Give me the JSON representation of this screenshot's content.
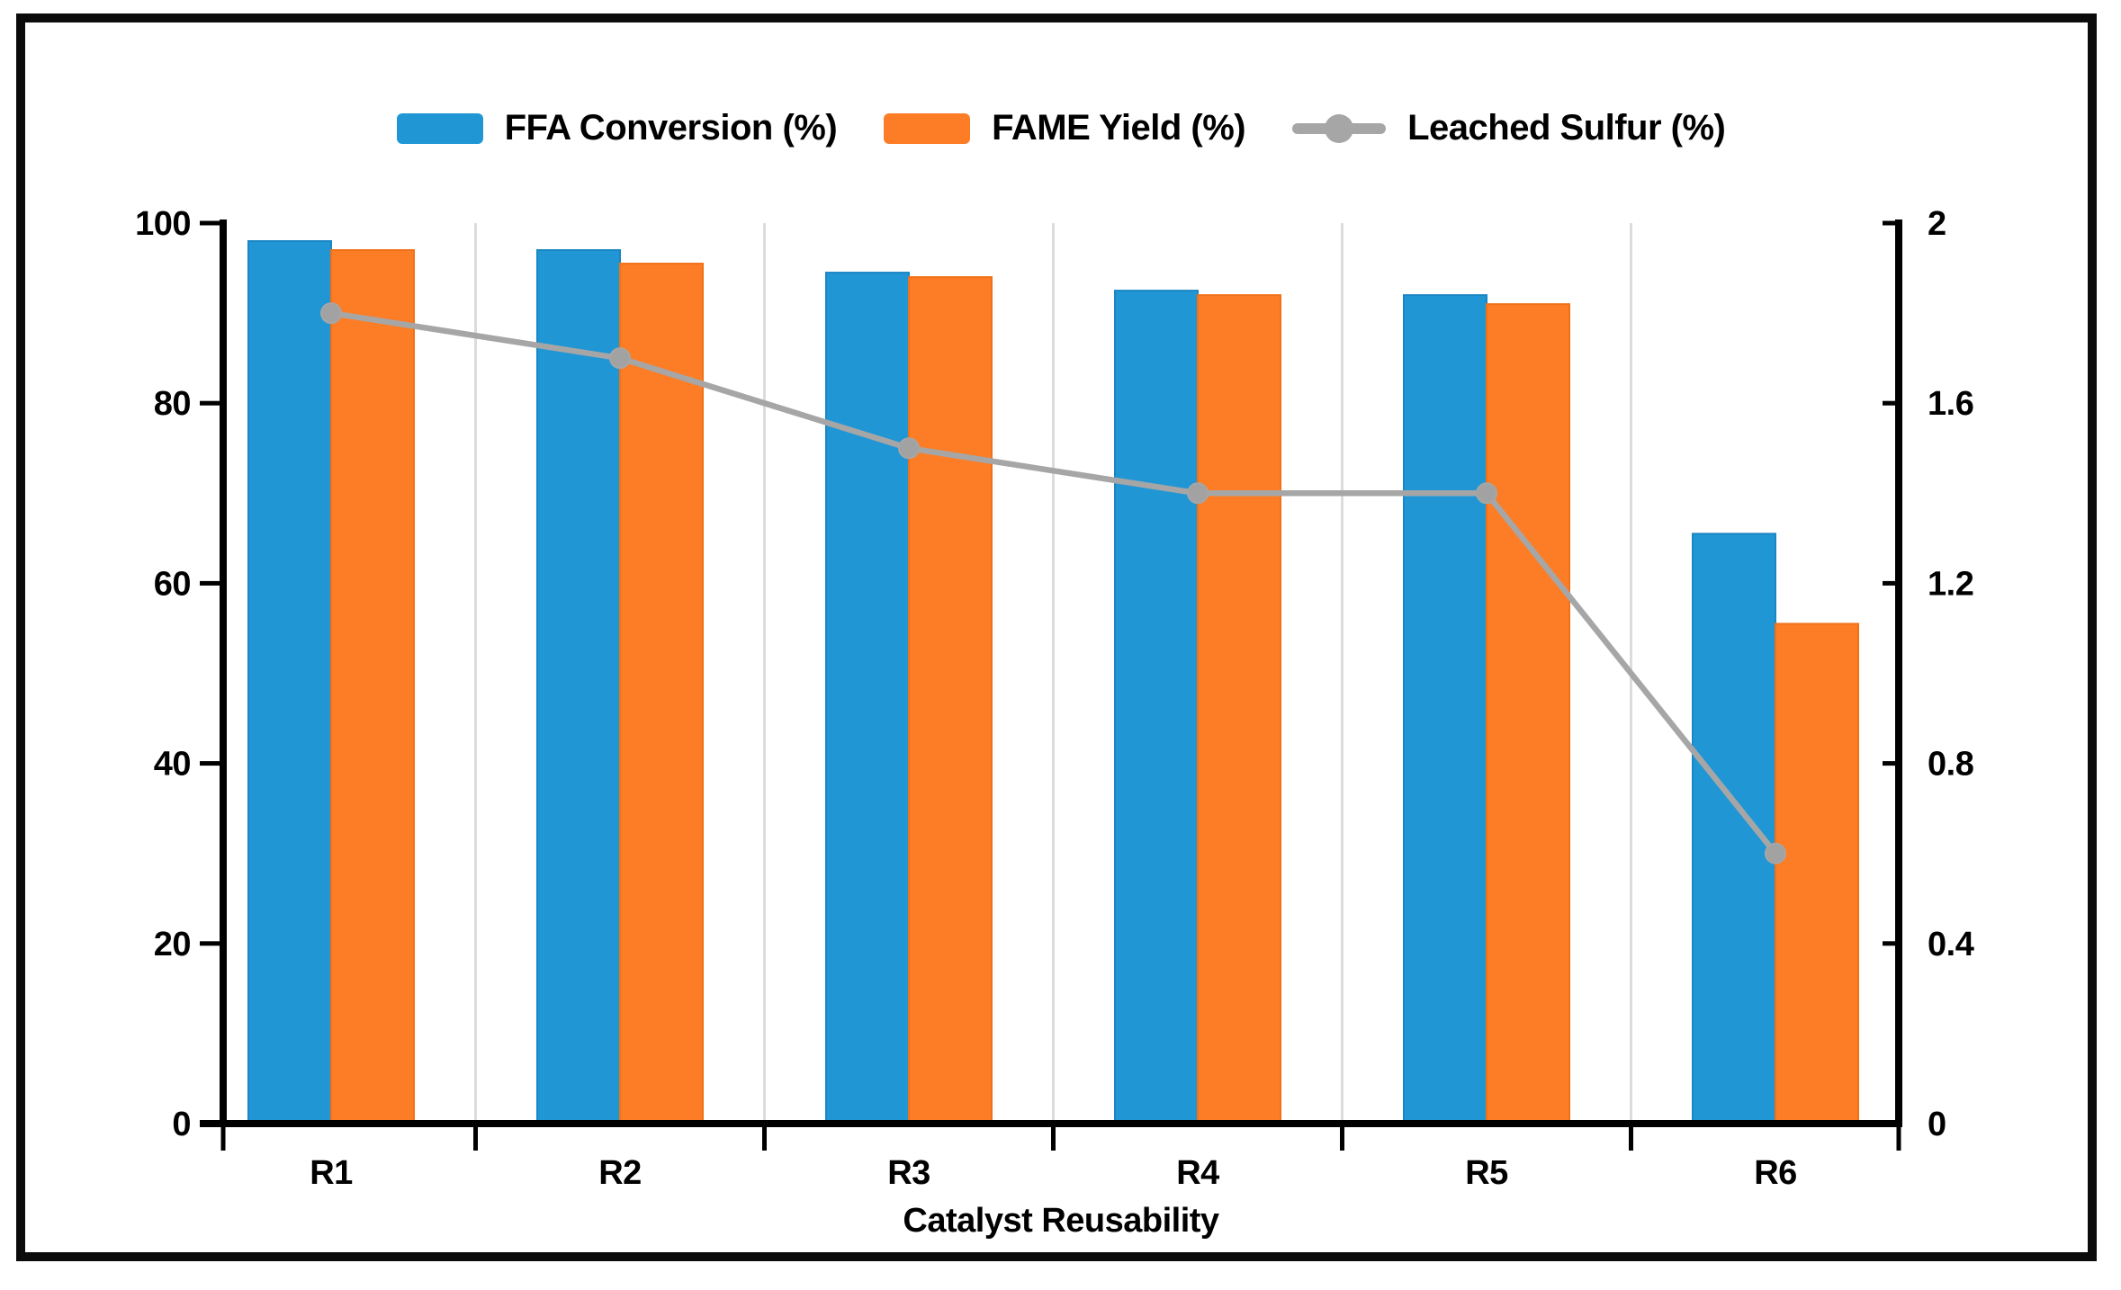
{
  "figure": {
    "border_color": "#0b0b0b",
    "background": "#ffffff",
    "gridline_color": "#dcdcdc",
    "axis_color": "#000000",
    "text_color": "#000000"
  },
  "legend": [
    {
      "label": "FFA Conversion (%)",
      "type": "bar",
      "color": "#2196d5"
    },
    {
      "label": "FAME Yield (%)",
      "type": "bar",
      "color": "#fc7d26"
    },
    {
      "label": "Leached Sulfur (%)",
      "type": "line",
      "color": "#a6a6a6"
    }
  ],
  "chart_data": {
    "type": "bar+line",
    "categories": [
      "R1",
      "R2",
      "R3",
      "R4",
      "R5",
      "R6"
    ],
    "series": [
      {
        "name": "FFA Conversion (%)",
        "type": "bar",
        "axis": "left",
        "color": "#2196d5",
        "edge": "#1a86c3",
        "values": [
          98,
          97,
          94.5,
          92.5,
          92,
          65.5
        ]
      },
      {
        "name": "FAME Yield (%)",
        "type": "bar",
        "axis": "left",
        "color": "#fc7d26",
        "edge": "#f07118",
        "values": [
          97,
          95.5,
          94,
          92,
          91,
          55.5
        ]
      },
      {
        "name": "Leached Sulfur (%)",
        "type": "line",
        "axis": "right",
        "color": "#a6a6a6",
        "marker_color": "#a2a2a2",
        "values": [
          1.8,
          1.7,
          1.5,
          1.4,
          1.4,
          0.6
        ]
      }
    ],
    "xlabel": "Catalyst Reusability",
    "left_axis": {
      "min": 0,
      "max": 100,
      "ticks": [
        0,
        20,
        40,
        60,
        80,
        100
      ]
    },
    "right_axis": {
      "min": 0,
      "max": 2,
      "ticks": [
        0,
        0.4,
        0.8,
        1.2,
        1.6,
        2
      ]
    },
    "gridlines": "vertical-between-categories",
    "legend_position": "top-center"
  }
}
